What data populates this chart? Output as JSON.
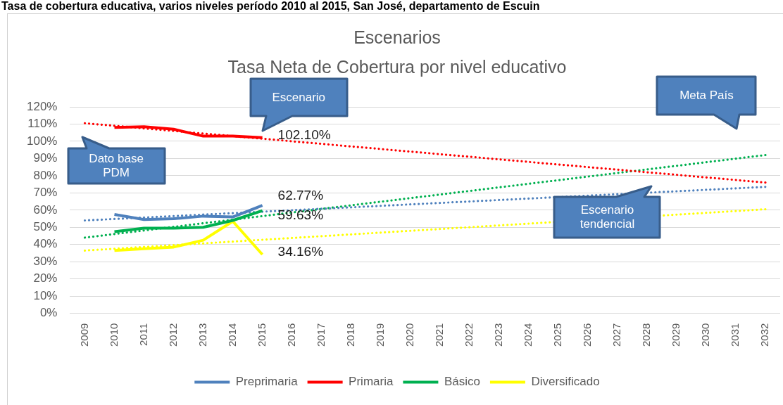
{
  "chart_data": {
    "type": "line",
    "title": "Escenarios",
    "subtitle": "Tasa Neta de Cobertura por nivel educativo",
    "annotations": [
      "Tasa de cobertura educativa, varios niveles período 2010 al 2015, San José, departamento de Escuin",
      "Escenario",
      "Dato base PDM",
      "Meta País",
      "Escenario tendencial"
    ],
    "xlim": [
      2008.5,
      2032.5
    ],
    "xticks": [
      2009,
      2010,
      2011,
      2012,
      2013,
      2014,
      2015,
      2016,
      2017,
      2018,
      2019,
      2020,
      2021,
      2022,
      2023,
      2024,
      2025,
      2026,
      2027,
      2028,
      2029,
      2030,
      2031,
      2032
    ],
    "ylim": [
      0,
      120
    ],
    "yticks": [
      {
        "value": 0,
        "label": "0%"
      },
      {
        "value": 10,
        "label": "10%"
      },
      {
        "value": 20,
        "label": "20%"
      },
      {
        "value": 30,
        "label": "30%"
      },
      {
        "value": 40,
        "label": "40%"
      },
      {
        "value": 50,
        "label": "50%"
      },
      {
        "value": 60,
        "label": "60%"
      },
      {
        "value": 70,
        "label": "70%"
      },
      {
        "value": 80,
        "label": "80%"
      },
      {
        "value": 90,
        "label": "90%"
      },
      {
        "value": 100,
        "label": "100%"
      },
      {
        "value": 110,
        "label": "110%"
      },
      {
        "value": 120,
        "label": "120%"
      }
    ],
    "grid": "y",
    "legend": "bottom",
    "series": [
      {
        "name": "Preprimaria",
        "color": "#4f81bd",
        "x": [
          2010,
          2011,
          2012,
          2013,
          2014,
          2015
        ],
        "values": [
          57.5,
          54.5,
          55,
          56.5,
          56,
          62.77
        ],
        "value_labels": [
          null,
          null,
          null,
          null,
          null,
          "62.77%"
        ]
      },
      {
        "name": "Primaria",
        "color": "#ff0000",
        "x": [
          2010,
          2011,
          2012,
          2013,
          2014,
          2015
        ],
        "values": [
          108,
          108.5,
          107,
          103,
          103,
          102.1
        ],
        "value_labels": [
          null,
          null,
          null,
          null,
          null,
          "102.10%"
        ]
      },
      {
        "name": "Básico",
        "color": "#00b050",
        "x": [
          2010,
          2011,
          2012,
          2013,
          2014,
          2015
        ],
        "values": [
          47.5,
          49.5,
          49.5,
          50,
          54,
          59.63
        ],
        "value_labels": [
          null,
          null,
          null,
          null,
          null,
          "59.63%"
        ]
      },
      {
        "name": "Diversificado",
        "color": "#ffff00",
        "x": [
          2010,
          2011,
          2012,
          2013,
          2014,
          2015
        ],
        "values": [
          36.5,
          37.5,
          38.5,
          42.5,
          53.5,
          34.16
        ],
        "value_labels": [
          null,
          null,
          null,
          null,
          null,
          "34.16%"
        ]
      },
      {
        "type": "line",
        "color": "#4f81bd",
        "line_style": "dotted",
        "x": [
          2009,
          2032
        ],
        "values": [
          54,
          73.5
        ]
      },
      {
        "type": "line",
        "color": "#ff0000",
        "line_style": "dotted",
        "x": [
          2009,
          2032
        ],
        "values": [
          110.5,
          76
        ]
      },
      {
        "type": "line",
        "color": "#00b050",
        "line_style": "dotted",
        "x": [
          2009,
          2032
        ],
        "values": [
          44,
          92
        ]
      },
      {
        "type": "line",
        "color": "#ffff00",
        "line_style": "dotted",
        "x": [
          2009,
          2032
        ],
        "values": [
          36.5,
          60.5
        ]
      }
    ]
  }
}
